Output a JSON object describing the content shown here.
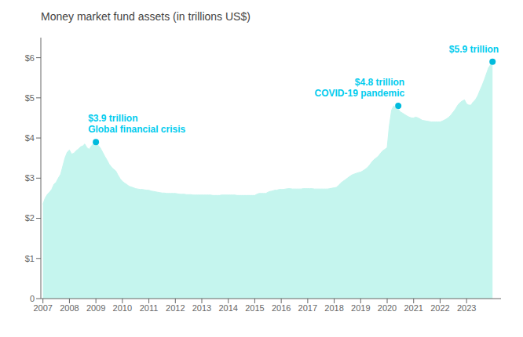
{
  "chart_data": {
    "type": "area",
    "title": "Money market fund assets (in trillions US$)",
    "x": [
      2007.0,
      2007.08,
      2007.17,
      2007.25,
      2007.33,
      2007.42,
      2007.5,
      2007.58,
      2007.67,
      2007.75,
      2007.83,
      2007.92,
      2008.0,
      2008.08,
      2008.17,
      2008.25,
      2008.33,
      2008.42,
      2008.5,
      2008.58,
      2008.67,
      2008.75,
      2008.83,
      2008.92,
      2009.0,
      2009.08,
      2009.17,
      2009.25,
      2009.33,
      2009.42,
      2009.5,
      2009.58,
      2009.67,
      2009.75,
      2009.83,
      2009.92,
      2010.0,
      2010.08,
      2010.17,
      2010.25,
      2010.33,
      2010.42,
      2010.5,
      2010.58,
      2010.67,
      2010.75,
      2010.83,
      2010.92,
      2011.0,
      2011.08,
      2011.17,
      2011.25,
      2011.33,
      2011.42,
      2011.5,
      2011.58,
      2011.67,
      2011.75,
      2011.83,
      2011.92,
      2012.0,
      2012.08,
      2012.17,
      2012.25,
      2012.33,
      2012.42,
      2012.5,
      2012.58,
      2012.67,
      2012.75,
      2012.83,
      2012.92,
      2013.0,
      2013.08,
      2013.17,
      2013.25,
      2013.33,
      2013.42,
      2013.5,
      2013.58,
      2013.67,
      2013.75,
      2013.83,
      2013.92,
      2014.0,
      2014.08,
      2014.17,
      2014.25,
      2014.33,
      2014.42,
      2014.5,
      2014.58,
      2014.67,
      2014.75,
      2014.83,
      2014.92,
      2015.0,
      2015.08,
      2015.17,
      2015.25,
      2015.33,
      2015.42,
      2015.5,
      2015.58,
      2015.67,
      2015.75,
      2015.83,
      2015.92,
      2016.0,
      2016.08,
      2016.17,
      2016.25,
      2016.33,
      2016.42,
      2016.5,
      2016.58,
      2016.67,
      2016.75,
      2016.83,
      2016.92,
      2017.0,
      2017.08,
      2017.17,
      2017.25,
      2017.33,
      2017.42,
      2017.5,
      2017.58,
      2017.67,
      2017.75,
      2017.83,
      2017.92,
      2018.0,
      2018.08,
      2018.17,
      2018.25,
      2018.33,
      2018.42,
      2018.5,
      2018.58,
      2018.67,
      2018.75,
      2018.83,
      2018.92,
      2019.0,
      2019.08,
      2019.17,
      2019.25,
      2019.33,
      2019.42,
      2019.5,
      2019.58,
      2019.67,
      2019.75,
      2019.83,
      2019.92,
      2020.0,
      2020.08,
      2020.17,
      2020.25,
      2020.33,
      2020.42,
      2020.5,
      2020.58,
      2020.67,
      2020.75,
      2020.83,
      2020.92,
      2021.0,
      2021.08,
      2021.17,
      2021.25,
      2021.33,
      2021.42,
      2021.5,
      2021.58,
      2021.67,
      2021.75,
      2021.83,
      2021.92,
      2022.0,
      2022.08,
      2022.17,
      2022.25,
      2022.33,
      2022.42,
      2022.5,
      2022.58,
      2022.67,
      2022.75,
      2022.83,
      2022.92,
      2023.0,
      2023.08,
      2023.17,
      2023.25,
      2023.33,
      2023.42,
      2023.5,
      2023.58,
      2023.67,
      2023.75,
      2023.83,
      2023.98
    ],
    "series": [
      {
        "type": "area",
        "color": "#c5f5ee",
        "values": [
          2.35,
          2.5,
          2.6,
          2.65,
          2.72,
          2.85,
          2.9,
          3.0,
          3.1,
          3.3,
          3.5,
          3.65,
          3.7,
          3.6,
          3.62,
          3.68,
          3.72,
          3.78,
          3.8,
          3.85,
          3.75,
          3.72,
          3.8,
          3.87,
          3.9,
          3.82,
          3.75,
          3.65,
          3.55,
          3.45,
          3.35,
          3.28,
          3.22,
          3.18,
          3.08,
          2.98,
          2.92,
          2.88,
          2.84,
          2.8,
          2.78,
          2.76,
          2.74,
          2.73,
          2.72,
          2.72,
          2.71,
          2.7,
          2.7,
          2.68,
          2.67,
          2.66,
          2.65,
          2.64,
          2.63,
          2.63,
          2.62,
          2.62,
          2.62,
          2.62,
          2.62,
          2.61,
          2.6,
          2.6,
          2.6,
          2.59,
          2.59,
          2.59,
          2.58,
          2.58,
          2.58,
          2.58,
          2.58,
          2.58,
          2.58,
          2.58,
          2.58,
          2.57,
          2.57,
          2.57,
          2.57,
          2.58,
          2.58,
          2.58,
          2.58,
          2.58,
          2.58,
          2.58,
          2.57,
          2.57,
          2.57,
          2.57,
          2.57,
          2.57,
          2.57,
          2.57,
          2.57,
          2.6,
          2.62,
          2.62,
          2.62,
          2.62,
          2.65,
          2.67,
          2.68,
          2.7,
          2.7,
          2.72,
          2.72,
          2.72,
          2.73,
          2.74,
          2.74,
          2.73,
          2.73,
          2.73,
          2.73,
          2.73,
          2.74,
          2.74,
          2.74,
          2.74,
          2.74,
          2.73,
          2.73,
          2.73,
          2.73,
          2.73,
          2.73,
          2.73,
          2.74,
          2.75,
          2.76,
          2.77,
          2.82,
          2.88,
          2.92,
          2.96,
          3.0,
          3.04,
          3.08,
          3.1,
          3.12,
          3.14,
          3.15,
          3.18,
          3.22,
          3.26,
          3.32,
          3.4,
          3.46,
          3.5,
          3.55,
          3.62,
          3.68,
          3.72,
          3.76,
          4.3,
          4.7,
          4.8,
          4.75,
          4.72,
          4.65,
          4.62,
          4.58,
          4.55,
          4.52,
          4.5,
          4.5,
          4.52,
          4.5,
          4.47,
          4.44,
          4.43,
          4.42,
          4.41,
          4.4,
          4.4,
          4.4,
          4.4,
          4.4,
          4.42,
          4.45,
          4.48,
          4.52,
          4.58,
          4.65,
          4.72,
          4.82,
          4.88,
          4.92,
          4.95,
          4.85,
          4.82,
          4.82,
          4.9,
          4.95,
          5.05,
          5.18,
          5.3,
          5.45,
          5.6,
          5.75,
          5.9
        ]
      },
      {
        "type": "scatter",
        "color": "#00bbdd",
        "x": [
          2009.0,
          2020.42,
          2023.98
        ],
        "values": [
          3.9,
          4.8,
          5.9
        ]
      }
    ],
    "annotations": [
      {
        "x": 2009.0,
        "y": 3.9,
        "text": [
          "$3.9 trillion",
          "Global financial crisis"
        ],
        "color": "#00ccee"
      },
      {
        "x": 2020.42,
        "y": 4.8,
        "text": [
          "$4.8 trillion",
          "COVID-19 pandemic"
        ],
        "color": "#00ccee"
      },
      {
        "x": 2023.98,
        "y": 5.9,
        "text": [
          "$5.9 trillion"
        ],
        "color": "#00ccee"
      }
    ],
    "xlim": [
      2006.92,
      2024.3
    ],
    "xticks": [
      2007,
      2008,
      2009,
      2010,
      2011,
      2012,
      2013,
      2014,
      2015,
      2016,
      2017,
      2018,
      2019,
      2020,
      2021,
      2022,
      2023
    ],
    "ylim": [
      0,
      6.5
    ],
    "yticks": [
      0,
      {
        "value": 1,
        "label": "$1"
      },
      {
        "value": 2,
        "label": "$2"
      },
      {
        "value": 3,
        "label": "$3"
      },
      {
        "value": 4,
        "label": "$4"
      },
      {
        "value": 5,
        "label": "$5"
      },
      {
        "value": 6,
        "label": "$6"
      }
    ],
    "grid": false
  }
}
